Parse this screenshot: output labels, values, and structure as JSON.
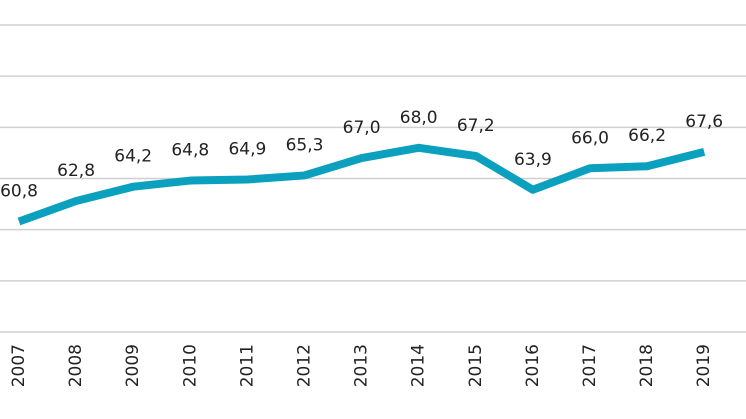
{
  "chart_data": {
    "type": "line",
    "categories": [
      "2007",
      "2008",
      "2009",
      "2010",
      "2011",
      "2012",
      "2013",
      "2014",
      "2015",
      "2016",
      "2017",
      "2018",
      "2019"
    ],
    "values": [
      60.8,
      62.8,
      64.2,
      64.8,
      64.9,
      65.3,
      67.0,
      68.0,
      67.2,
      63.9,
      66.0,
      66.2,
      67.6
    ],
    "value_labels": [
      "60,8",
      "62,8",
      "64,2",
      "64,8",
      "64,9",
      "65,3",
      "67,0",
      "68,0",
      "67,2",
      "63,9",
      "66,0",
      "66,2",
      "67,6"
    ],
    "color": "#0ba1be",
    "ylim": [
      50,
      80
    ],
    "yticks": [
      50,
      55,
      60,
      65,
      70,
      75,
      80
    ],
    "grid": true
  }
}
